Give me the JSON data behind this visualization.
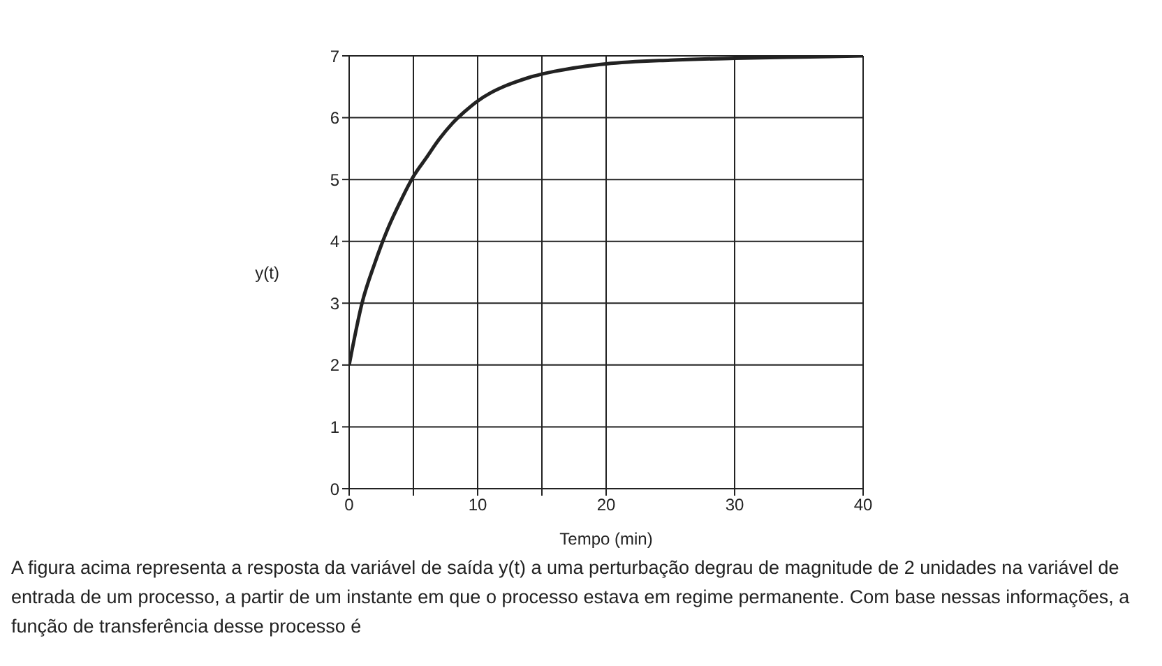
{
  "chart_data": {
    "type": "line",
    "xlabel": "Tempo (min)",
    "ylabel": "y(t)",
    "x": [
      0,
      1,
      2,
      3,
      4,
      5,
      6,
      7,
      8,
      9,
      10,
      11,
      12,
      13,
      14,
      16,
      18,
      20,
      25,
      30,
      35,
      40
    ],
    "series": [
      {
        "color": "#222222",
        "values": [
          2,
          3.0,
          3.65,
          4.2,
          4.65,
          5.05,
          5.35,
          5.65,
          5.9,
          6.1,
          6.27,
          6.4,
          6.5,
          6.58,
          6.65,
          6.75,
          6.82,
          6.87,
          6.93,
          6.96,
          6.98,
          7
        ]
      }
    ],
    "xlim": [
      0,
      40
    ],
    "xticks": [
      0,
      {
        "value": 5,
        "label": null
      },
      10,
      {
        "value": 15,
        "label": null
      },
      20,
      30,
      40
    ],
    "ylim": [
      0,
      7
    ],
    "yticks": [
      0,
      1,
      2,
      3,
      4,
      5,
      6,
      7
    ],
    "grid": true,
    "marker": "none",
    "line_style": "solid",
    "annotations": [
      "A figura acima representa a resposta da variável de saída y(t) a uma perturbação degrau de magnitude de 2 unidades na variável de entrada de um processo, a partir de um instante em que o processo estava em regime permanente. Com base nessas informações, a função de transferência desse processo é"
    ]
  }
}
